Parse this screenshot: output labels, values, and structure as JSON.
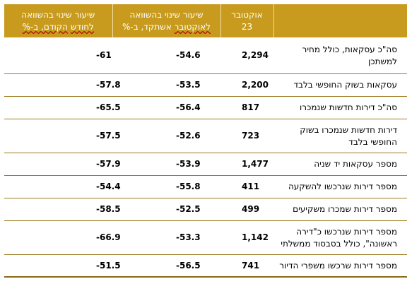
{
  "header": {
    "col_label": "",
    "col_october": "אוקטובר 23",
    "col_yoy_prefix": "שיעור שינוי בהשוואה",
    "col_yoy_suffix_a": "לאוקטובר",
    "col_yoy_suffix_b": "אשתקד, ב-%",
    "col_mom_prefix": "שיעור שינוי בהשוואה",
    "col_mom_suffix_a": "לחודש",
    "col_mom_suffix_b": "הקודם, ב-%"
  },
  "rows": [
    {
      "label": "סה\"כ עסקאות, כולל מחיר למשתכן",
      "october": "2,294",
      "yoy": "-54.6",
      "mom": "-61"
    },
    {
      "label": "עסקאות בשוק החופשי בלבד",
      "october": "2,200",
      "yoy": "-53.5",
      "mom": "-57.8"
    },
    {
      "label": "סה\"כ דירות חדשות שנמכרו",
      "october": "817",
      "yoy": "-56.4",
      "mom": "-65.5"
    },
    {
      "label": "דירות חדשות שנמכרו בשוק החופשי בלבד",
      "october": "723",
      "yoy": "-52.6",
      "mom": "-57.5"
    },
    {
      "label": "מספר עסקאות יד שניה",
      "october": "1,477",
      "yoy": "-53.9",
      "mom": "-57.9"
    },
    {
      "label": "מספר דירות שנרכשו להשקעה",
      "october": "411",
      "yoy": "-55.8",
      "mom": "-54.4"
    },
    {
      "label": "מספר דירות שמכרו משקיעים",
      "october": "499",
      "yoy": "-52.5",
      "mom": "-58.5"
    },
    {
      "label": "מספר דירות שנרכשו כ\"דירה ראשונה\", כולל בסבסוד ממשלתי",
      "october": "1,142",
      "yoy": "-53.3",
      "mom": "-66.9"
    },
    {
      "label": "מספר דירות שרכשו משפרי הדיור",
      "october": "741",
      "yoy": "-56.5",
      "mom": "-51.5"
    }
  ]
}
